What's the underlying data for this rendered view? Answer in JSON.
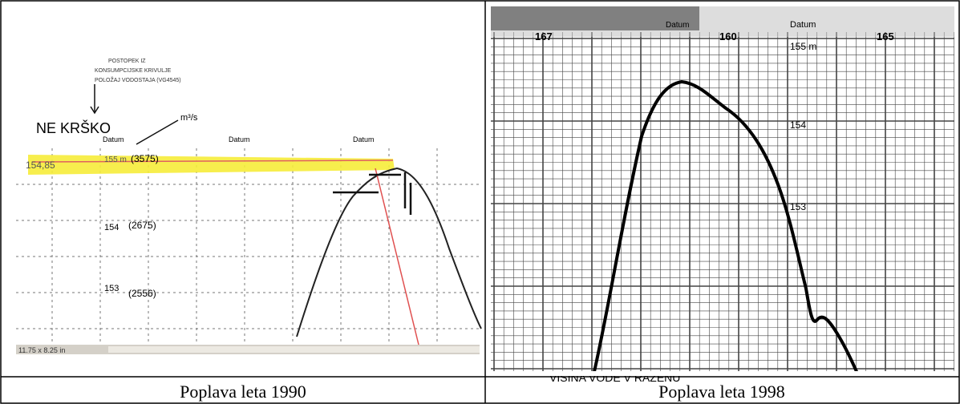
{
  "left_image": {
    "title": "NE KRŠKO",
    "unit": "m³/s",
    "level_mark": "154,85",
    "datum_labels": [
      "Datum",
      "Datum",
      "Datum"
    ],
    "scale_labels": [
      "155 m",
      "154",
      "153"
    ],
    "flows": [
      "(3575)",
      "(2675)",
      "(2556)"
    ],
    "status": "11.75 x 8.25 in"
  },
  "right_image": {
    "datum_labels": [
      "Datum",
      "Datum"
    ],
    "day_labels": [
      "167",
      "160",
      "165"
    ],
    "scale_labels": [
      "155 m",
      "154",
      "153"
    ],
    "footer": "VIŠINA VODE V RAZENU"
  },
  "captions": [
    "Poplava leta 1990",
    "Poplava leta 1998"
  ]
}
